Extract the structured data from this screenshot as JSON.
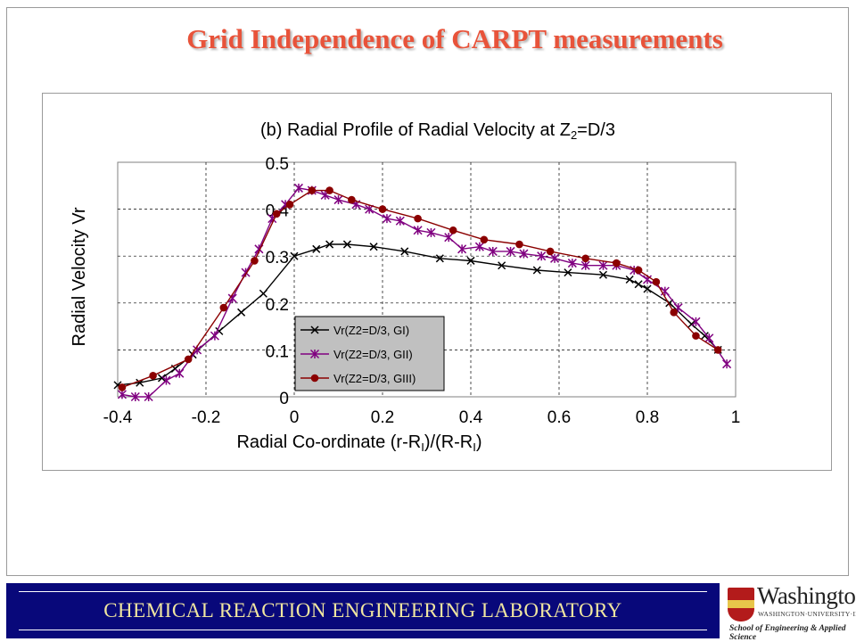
{
  "slide": {
    "title": "Grid Independence of CARPT measurements",
    "footer": "CHEMICAL  REACTION  ENGINEERING  LABORATORY",
    "logo": {
      "name": "Washington",
      "subtitle": "WASHINGTON·UNIVERSITY·IN·ST·LOUIS",
      "school": "School of Engineering & Applied Science"
    }
  },
  "colors": {
    "title": "#e8533a",
    "footer_bg": "#08087a",
    "footer_text": "#f0e6a0",
    "series_GI": "#000000",
    "series_GII": "#800080",
    "series_GIII": "#8b0000"
  },
  "chart_data": {
    "type": "line",
    "title": "(b) Radial Profile of Radial Velocity at Z",
    "title_sub": "2",
    "title_end": "=D/3",
    "xlabel": "Radial Co-ordinate (r-R",
    "xlabel_sub1": "I",
    "xlabel_mid": ")/(R-R",
    "xlabel_sub2": "I",
    "xlabel_end": ")",
    "ylabel": "Radial Velocity Vr",
    "xlim": [
      -0.4,
      1.0
    ],
    "ylim": [
      0,
      0.5
    ],
    "x_ticks": [
      "-0.4",
      "-0.2",
      "0",
      "0.2",
      "0.4",
      "0.6",
      "0.8",
      "1"
    ],
    "y_ticks": [
      "0",
      "0.1",
      "0.2",
      "0.3",
      "0.4",
      "0.5"
    ],
    "grid": "horizontal and vertical dashed",
    "legend_position": "lower-left inside plot",
    "series": [
      {
        "name": "Vr(Z2=D/3, GI)",
        "marker": "x",
        "color": "#000000",
        "x": [
          -0.4,
          -0.35,
          -0.3,
          -0.27,
          -0.23,
          -0.17,
          -0.12,
          -0.07,
          0.0,
          0.05,
          0.08,
          0.12,
          0.18,
          0.25,
          0.33,
          0.4,
          0.47,
          0.55,
          0.62,
          0.7,
          0.76,
          0.78,
          0.8,
          0.85,
          0.9,
          0.93,
          0.96
        ],
        "y": [
          0.025,
          0.03,
          0.04,
          0.06,
          0.09,
          0.14,
          0.18,
          0.22,
          0.3,
          0.315,
          0.325,
          0.325,
          0.32,
          0.31,
          0.295,
          0.29,
          0.28,
          0.27,
          0.265,
          0.26,
          0.25,
          0.24,
          0.23,
          0.2,
          0.155,
          0.13,
          0.1
        ]
      },
      {
        "name": "Vr(Z2=D/3, GII)",
        "marker": "asterisk",
        "color": "#800080",
        "x": [
          -0.39,
          -0.36,
          -0.33,
          -0.29,
          -0.26,
          -0.22,
          -0.18,
          -0.14,
          -0.11,
          -0.08,
          -0.05,
          -0.02,
          0.01,
          0.04,
          0.07,
          0.1,
          0.14,
          0.17,
          0.21,
          0.24,
          0.28,
          0.31,
          0.35,
          0.38,
          0.42,
          0.45,
          0.49,
          0.52,
          0.56,
          0.59,
          0.63,
          0.66,
          0.7,
          0.73,
          0.77,
          0.8,
          0.84,
          0.87,
          0.91,
          0.94,
          0.98
        ],
        "y": [
          0.005,
          0.0,
          0.0,
          0.035,
          0.05,
          0.1,
          0.13,
          0.21,
          0.265,
          0.315,
          0.38,
          0.41,
          0.445,
          0.44,
          0.43,
          0.42,
          0.41,
          0.4,
          0.38,
          0.375,
          0.355,
          0.35,
          0.34,
          0.315,
          0.32,
          0.31,
          0.31,
          0.305,
          0.3,
          0.295,
          0.285,
          0.28,
          0.28,
          0.28,
          0.27,
          0.25,
          0.225,
          0.19,
          0.16,
          0.125,
          0.07
        ]
      },
      {
        "name": "Vr(Z2=D/3, GIII)",
        "marker": "circle",
        "color": "#8b0000",
        "x": [
          -0.39,
          -0.32,
          -0.24,
          -0.16,
          -0.09,
          -0.04,
          -0.01,
          0.04,
          0.08,
          0.13,
          0.2,
          0.28,
          0.36,
          0.43,
          0.51,
          0.58,
          0.66,
          0.73,
          0.78,
          0.82,
          0.86,
          0.91,
          0.96
        ],
        "y": [
          0.02,
          0.045,
          0.08,
          0.19,
          0.29,
          0.39,
          0.41,
          0.44,
          0.44,
          0.42,
          0.4,
          0.38,
          0.355,
          0.335,
          0.325,
          0.31,
          0.295,
          0.285,
          0.27,
          0.245,
          0.18,
          0.13,
          0.1
        ]
      }
    ]
  }
}
